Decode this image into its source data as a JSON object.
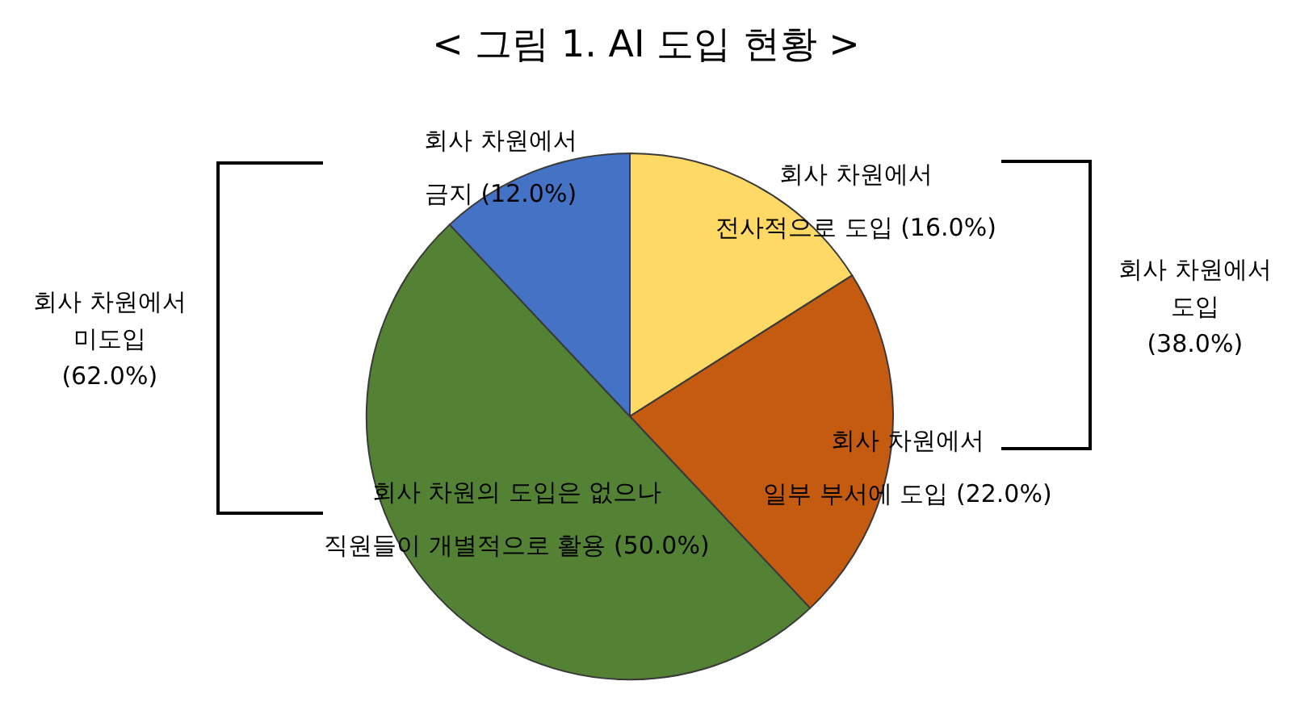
{
  "chart_data": {
    "type": "pie",
    "title": "< 그림 1. AI 도입 현황 >",
    "categories": [
      "회사 차원에서\n전사적으로 도입",
      "회사 차원에서\n일부 부서에 도입",
      "회사 차원의 도입은 없으나\n직원들이 개별적으로 활용",
      "회사 차원에서\n금지"
    ],
    "values": [
      16.0,
      22.0,
      50.0,
      12.0
    ],
    "colors": [
      "#ffd966",
      "#c55a11",
      "#548235",
      "#4472c4"
    ],
    "value_labels": [
      "(16.0%)",
      "(22.0%)",
      "(50.0%)",
      "(12.0%)"
    ],
    "annotations": [
      "회사 차원에서\n도입\n(38.0%)",
      "회사 차원에서\n미도입\n(62.0%)"
    ],
    "legend": false
  }
}
